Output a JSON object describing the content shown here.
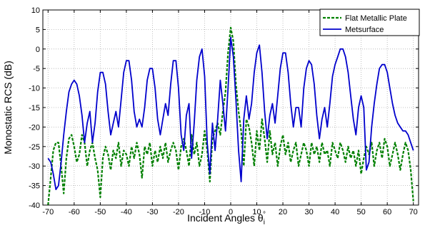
{
  "chart_data": {
    "type": "line",
    "title": "",
    "xlabel": "Incident Angles θ",
    "xlabel_subscript": "i",
    "xlabel_superscript": "°",
    "ylabel": "Monostatic RCS (dB)",
    "xlim": [
      -72,
      72
    ],
    "ylim": [
      -40,
      10
    ],
    "xticks": [
      -70,
      -60,
      -50,
      -40,
      -30,
      -20,
      -10,
      0,
      10,
      20,
      30,
      40,
      50,
      60,
      70
    ],
    "yticks": [
      -40,
      -35,
      -30,
      -25,
      -20,
      -15,
      -10,
      -5,
      0,
      5,
      10
    ],
    "grid": true,
    "legend_position": "top-right",
    "series": [
      {
        "name": "Flat Metallic Plate",
        "color": "#008000",
        "style": "dashed",
        "points": [
          [
            -70,
            -40
          ],
          [
            -69,
            -33
          ],
          [
            -68,
            -26
          ],
          [
            -67,
            -24
          ],
          [
            -66,
            -24
          ],
          [
            -65,
            -30
          ],
          [
            -64,
            -37
          ],
          [
            -63,
            -28
          ],
          [
            -62,
            -23
          ],
          [
            -61,
            -22
          ],
          [
            -60,
            -25
          ],
          [
            -59,
            -29
          ],
          [
            -58,
            -27
          ],
          [
            -57,
            -22
          ],
          [
            -56,
            -24
          ],
          [
            -55,
            -30
          ],
          [
            -54,
            -26
          ],
          [
            -53,
            -24
          ],
          [
            -52,
            -28
          ],
          [
            -51,
            -31
          ],
          [
            -50,
            -38
          ],
          [
            -49,
            -28
          ],
          [
            -48,
            -25
          ],
          [
            -47,
            -27
          ],
          [
            -46,
            -31
          ],
          [
            -45,
            -26
          ],
          [
            -44,
            -28
          ],
          [
            -43,
            -24
          ],
          [
            -42,
            -30
          ],
          [
            -41,
            -26
          ],
          [
            -40,
            -27
          ],
          [
            -39,
            -30
          ],
          [
            -38,
            -25
          ],
          [
            -37,
            -28
          ],
          [
            -36,
            -24
          ],
          [
            -35,
            -27
          ],
          [
            -34,
            -33
          ],
          [
            -33,
            -25
          ],
          [
            -32,
            -27
          ],
          [
            -31,
            -24
          ],
          [
            -30,
            -30
          ],
          [
            -29,
            -26
          ],
          [
            -28,
            -29
          ],
          [
            -27,
            -25
          ],
          [
            -26,
            -28
          ],
          [
            -25,
            -24
          ],
          [
            -24,
            -29
          ],
          [
            -23,
            -26
          ],
          [
            -22,
            -24
          ],
          [
            -21,
            -26
          ],
          [
            -20,
            -31
          ],
          [
            -19,
            -25
          ],
          [
            -18,
            -23
          ],
          [
            -17,
            -26
          ],
          [
            -16,
            -30
          ],
          [
            -15,
            -22
          ],
          [
            -14,
            -27
          ],
          [
            -13,
            -24
          ],
          [
            -12,
            -30
          ],
          [
            -11,
            -27
          ],
          [
            -10,
            -21
          ],
          [
            -9,
            -26
          ],
          [
            -8,
            -34
          ],
          [
            -7,
            -23
          ],
          [
            -6,
            -21
          ],
          [
            -5,
            -19
          ],
          [
            -4,
            -22
          ],
          [
            -3,
            -16
          ],
          [
            -2,
            -11
          ],
          [
            -1,
            -1
          ],
          [
            0,
            5.5
          ],
          [
            1,
            2
          ],
          [
            2,
            -9
          ],
          [
            3,
            -16
          ],
          [
            4,
            -21
          ],
          [
            5,
            -30
          ],
          [
            6,
            -18
          ],
          [
            7,
            -20
          ],
          [
            8,
            -24
          ],
          [
            9,
            -30
          ],
          [
            10,
            -21
          ],
          [
            11,
            -26
          ],
          [
            12,
            -18
          ],
          [
            13,
            -23
          ],
          [
            14,
            -29
          ],
          [
            15,
            -21
          ],
          [
            16,
            -27
          ],
          [
            17,
            -24
          ],
          [
            18,
            -30
          ],
          [
            19,
            -25
          ],
          [
            20,
            -22
          ],
          [
            21,
            -27
          ],
          [
            22,
            -24
          ],
          [
            23,
            -29
          ],
          [
            24,
            -26
          ],
          [
            25,
            -24
          ],
          [
            26,
            -30
          ],
          [
            27,
            -27
          ],
          [
            28,
            -24
          ],
          [
            29,
            -26
          ],
          [
            30,
            -30
          ],
          [
            31,
            -24
          ],
          [
            32,
            -27
          ],
          [
            33,
            -25
          ],
          [
            34,
            -29
          ],
          [
            35,
            -24
          ],
          [
            36,
            -27
          ],
          [
            37,
            -26
          ],
          [
            38,
            -30
          ],
          [
            39,
            -24
          ],
          [
            40,
            -26
          ],
          [
            41,
            -28
          ],
          [
            42,
            -24
          ],
          [
            43,
            -26
          ],
          [
            44,
            -29
          ],
          [
            45,
            -25
          ],
          [
            46,
            -28
          ],
          [
            47,
            -26
          ],
          [
            48,
            -30
          ],
          [
            49,
            -26
          ],
          [
            50,
            -32
          ],
          [
            51,
            -28
          ],
          [
            52,
            -25
          ],
          [
            53,
            -27
          ],
          [
            54,
            -24
          ],
          [
            55,
            -30
          ],
          [
            56,
            -26
          ],
          [
            57,
            -24
          ],
          [
            58,
            -28
          ],
          [
            59,
            -23
          ],
          [
            60,
            -25
          ],
          [
            61,
            -30
          ],
          [
            62,
            -27
          ],
          [
            63,
            -24
          ],
          [
            64,
            -27
          ],
          [
            65,
            -31
          ],
          [
            66,
            -27
          ],
          [
            67,
            -24
          ],
          [
            68,
            -26
          ],
          [
            69,
            -31
          ],
          [
            70,
            -39
          ]
        ]
      },
      {
        "name": "Metsurface",
        "color": "#0000cc",
        "style": "solid",
        "points": [
          [
            -70,
            -28
          ],
          [
            -69,
            -29
          ],
          [
            -68,
            -32
          ],
          [
            -67,
            -36
          ],
          [
            -66,
            -35
          ],
          [
            -65,
            -29
          ],
          [
            -64,
            -22
          ],
          [
            -63,
            -16
          ],
          [
            -62,
            -11
          ],
          [
            -61,
            -9
          ],
          [
            -60,
            -8
          ],
          [
            -59,
            -9
          ],
          [
            -58,
            -12
          ],
          [
            -57,
            -17
          ],
          [
            -56,
            -24
          ],
          [
            -55,
            -19
          ],
          [
            -54,
            -16
          ],
          [
            -53,
            -24
          ],
          [
            -52,
            -19
          ],
          [
            -51,
            -11
          ],
          [
            -50,
            -6
          ],
          [
            -49,
            -6
          ],
          [
            -48,
            -9
          ],
          [
            -47,
            -16
          ],
          [
            -46,
            -22
          ],
          [
            -45,
            -19
          ],
          [
            -44,
            -16
          ],
          [
            -43,
            -20
          ],
          [
            -42,
            -13
          ],
          [
            -41,
            -6
          ],
          [
            -40,
            -3
          ],
          [
            -39,
            -3
          ],
          [
            -38,
            -8
          ],
          [
            -37,
            -16
          ],
          [
            -36,
            -20
          ],
          [
            -35,
            -18
          ],
          [
            -34,
            -20
          ],
          [
            -33,
            -15
          ],
          [
            -32,
            -8
          ],
          [
            -31,
            -5
          ],
          [
            -30,
            -5
          ],
          [
            -29,
            -10
          ],
          [
            -28,
            -18
          ],
          [
            -27,
            -22
          ],
          [
            -26,
            -18
          ],
          [
            -25,
            -14
          ],
          [
            -24,
            -17
          ],
          [
            -23,
            -9
          ],
          [
            -22,
            -3
          ],
          [
            -21,
            -3
          ],
          [
            -20,
            -10
          ],
          [
            -19,
            -22
          ],
          [
            -18,
            -26
          ],
          [
            -17,
            -17
          ],
          [
            -16,
            -14
          ],
          [
            -15,
            -28
          ],
          [
            -14,
            -19
          ],
          [
            -13,
            -8
          ],
          [
            -12,
            -2
          ],
          [
            -11,
            0
          ],
          [
            -10,
            -7
          ],
          [
            -9,
            -24
          ],
          [
            -8,
            -32
          ],
          [
            -7,
            -19
          ],
          [
            -6,
            -26
          ],
          [
            -5,
            -18
          ],
          [
            -4,
            -8
          ],
          [
            -3,
            -14
          ],
          [
            -2,
            -21
          ],
          [
            -1,
            -10
          ],
          [
            0,
            3
          ],
          [
            1,
            -2
          ],
          [
            2,
            -13
          ],
          [
            3,
            -26
          ],
          [
            4,
            -34
          ],
          [
            5,
            -18
          ],
          [
            6,
            -12
          ],
          [
            7,
            -18
          ],
          [
            8,
            -14
          ],
          [
            9,
            -6
          ],
          [
            10,
            -1
          ],
          [
            11,
            1
          ],
          [
            12,
            -6
          ],
          [
            13,
            -16
          ],
          [
            14,
            -23
          ],
          [
            15,
            -17
          ],
          [
            16,
            -14
          ],
          [
            17,
            -19
          ],
          [
            18,
            -12
          ],
          [
            19,
            -5
          ],
          [
            20,
            -1
          ],
          [
            21,
            -1
          ],
          [
            22,
            -6
          ],
          [
            23,
            -14
          ],
          [
            24,
            -20
          ],
          [
            25,
            -15
          ],
          [
            26,
            -15
          ],
          [
            27,
            -20
          ],
          [
            28,
            -10
          ],
          [
            29,
            -5
          ],
          [
            30,
            -3
          ],
          [
            31,
            -4
          ],
          [
            32,
            -9
          ],
          [
            33,
            -17
          ],
          [
            34,
            -23
          ],
          [
            35,
            -18
          ],
          [
            36,
            -15
          ],
          [
            37,
            -20
          ],
          [
            38,
            -14
          ],
          [
            39,
            -7
          ],
          [
            40,
            -4
          ],
          [
            41,
            -2
          ],
          [
            42,
            0
          ],
          [
            43,
            0
          ],
          [
            44,
            -2
          ],
          [
            45,
            -6
          ],
          [
            46,
            -12
          ],
          [
            47,
            -18
          ],
          [
            48,
            -22
          ],
          [
            49,
            -15
          ],
          [
            50,
            -12
          ],
          [
            51,
            -15
          ],
          [
            52,
            -31
          ],
          [
            53,
            -29
          ],
          [
            54,
            -20
          ],
          [
            55,
            -14
          ],
          [
            56,
            -9
          ],
          [
            57,
            -5
          ],
          [
            58,
            -4
          ],
          [
            59,
            -4
          ],
          [
            60,
            -6
          ],
          [
            61,
            -10
          ],
          [
            62,
            -14
          ],
          [
            63,
            -17
          ],
          [
            64,
            -19
          ],
          [
            65,
            -20
          ],
          [
            66,
            -21
          ],
          [
            67,
            -21
          ],
          [
            68,
            -22
          ],
          [
            69,
            -24
          ],
          [
            70,
            -26
          ]
        ]
      }
    ]
  }
}
